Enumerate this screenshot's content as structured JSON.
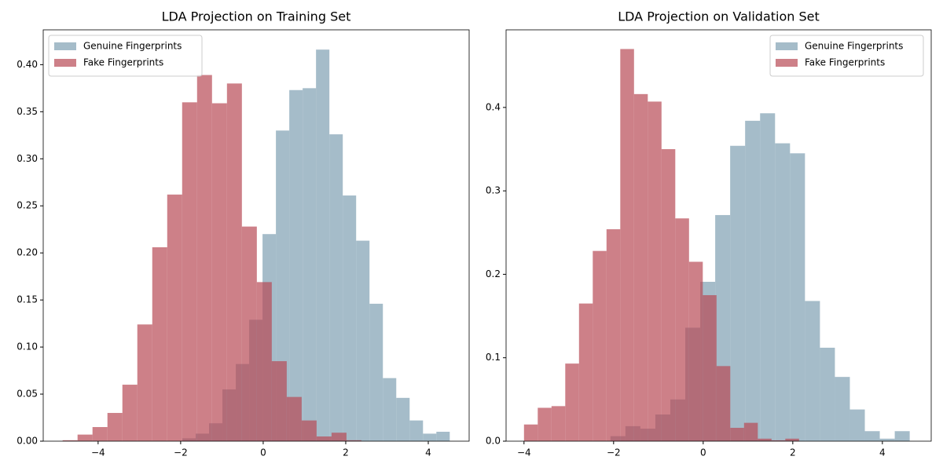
{
  "chart_data": [
    {
      "type": "histogram",
      "title": "LDA Projection on Training Set",
      "legend": "upper left",
      "alpha": 0.7,
      "xlim": [
        -5.33,
        4.99
      ],
      "ylim": [
        0,
        0.437
      ],
      "xticks": [
        {
          "value": -4,
          "label": "−4"
        },
        {
          "value": -2,
          "label": "−2"
        },
        0,
        2,
        4
      ],
      "yticks": [
        {
          "value": 0,
          "label": "0.00"
        },
        {
          "value": 0.05,
          "label": "0.05"
        },
        {
          "value": 0.1,
          "label": "0.10"
        },
        {
          "value": 0.15,
          "label": "0.15"
        },
        {
          "value": 0.2,
          "label": "0.20"
        },
        {
          "value": 0.25,
          "label": "0.25"
        },
        {
          "value": 0.3,
          "label": "0.30"
        },
        {
          "value": 0.35,
          "label": "0.35"
        },
        {
          "value": 0.4,
          "label": "0.40"
        }
      ],
      "series": [
        {
          "name": "Genuine Fingerprints",
          "color": "#7f9fb2",
          "bins": [
            -1.96,
            -1.636,
            -1.312,
            -0.988,
            -0.664,
            -0.34,
            -0.016,
            0.308,
            0.632,
            0.956,
            1.28,
            1.604,
            1.928,
            2.252,
            2.576,
            2.9,
            3.224,
            3.548,
            3.872,
            4.196,
            4.52
          ],
          "values": [
            0.003,
            0.008,
            0.019,
            0.055,
            0.082,
            0.129,
            0.22,
            0.33,
            0.373,
            0.375,
            0.416,
            0.326,
            0.261,
            0.213,
            0.146,
            0.067,
            0.046,
            0.022,
            0.008,
            0.01
          ]
        },
        {
          "name": "Fake Fingerprints",
          "color": "#b84a55",
          "bins": [
            -4.86,
            -4.498,
            -4.136,
            -3.774,
            -3.412,
            -3.05,
            -2.688,
            -2.326,
            -1.964,
            -1.602,
            -1.24,
            -0.878,
            -0.516,
            -0.154,
            0.208,
            0.57,
            0.932,
            1.294,
            1.656,
            2.018,
            2.38
          ],
          "values": [
            0.001,
            0.007,
            0.015,
            0.03,
            0.06,
            0.124,
            0.206,
            0.262,
            0.36,
            0.389,
            0.359,
            0.38,
            0.228,
            0.169,
            0.085,
            0.047,
            0.022,
            0.005,
            0.009,
            0.001
          ]
        }
      ]
    },
    {
      "type": "histogram",
      "title": "LDA Projection on Validation Set",
      "legend": "upper right",
      "alpha": 0.7,
      "xlim": [
        -4.4,
        5.09
      ],
      "ylim": [
        0,
        0.493
      ],
      "xticks": [
        {
          "value": -4,
          "label": "−4"
        },
        {
          "value": -2,
          "label": "−2"
        },
        0,
        2,
        4
      ],
      "yticks": [
        {
          "value": 0,
          "label": "0.0"
        },
        0.1,
        0.2,
        0.3,
        0.4
      ],
      "series": [
        {
          "name": "Genuine Fingerprints",
          "color": "#7f9fb2",
          "bins": [
            -2.07,
            -1.736,
            -1.402,
            -1.068,
            -0.734,
            -0.4,
            -0.066,
            0.268,
            0.602,
            0.936,
            1.27,
            1.604,
            1.938,
            2.272,
            2.606,
            2.94,
            3.274,
            3.608,
            3.942,
            4.276,
            4.61
          ],
          "values": [
            0.006,
            0.018,
            0.015,
            0.032,
            0.05,
            0.136,
            0.191,
            0.271,
            0.354,
            0.384,
            0.393,
            0.357,
            0.345,
            0.168,
            0.112,
            0.077,
            0.038,
            0.012,
            0.003,
            0.012
          ]
        },
        {
          "name": "Fake Fingerprints",
          "color": "#b84a55",
          "bins": [
            -4,
            -3.693,
            -3.386,
            -3.079,
            -2.772,
            -2.465,
            -2.158,
            -1.851,
            -1.544,
            -1.237,
            -0.93,
            -0.623,
            -0.316,
            -0.009,
            0.298,
            0.605,
            0.912,
            1.219,
            1.526,
            1.833,
            2.14
          ],
          "values": [
            0.02,
            0.04,
            0.042,
            0.093,
            0.165,
            0.228,
            0.254,
            0.47,
            0.416,
            0.407,
            0.35,
            0.267,
            0.215,
            0.175,
            0.09,
            0.016,
            0.022,
            0.003,
            0.001,
            0.003
          ]
        }
      ]
    }
  ]
}
